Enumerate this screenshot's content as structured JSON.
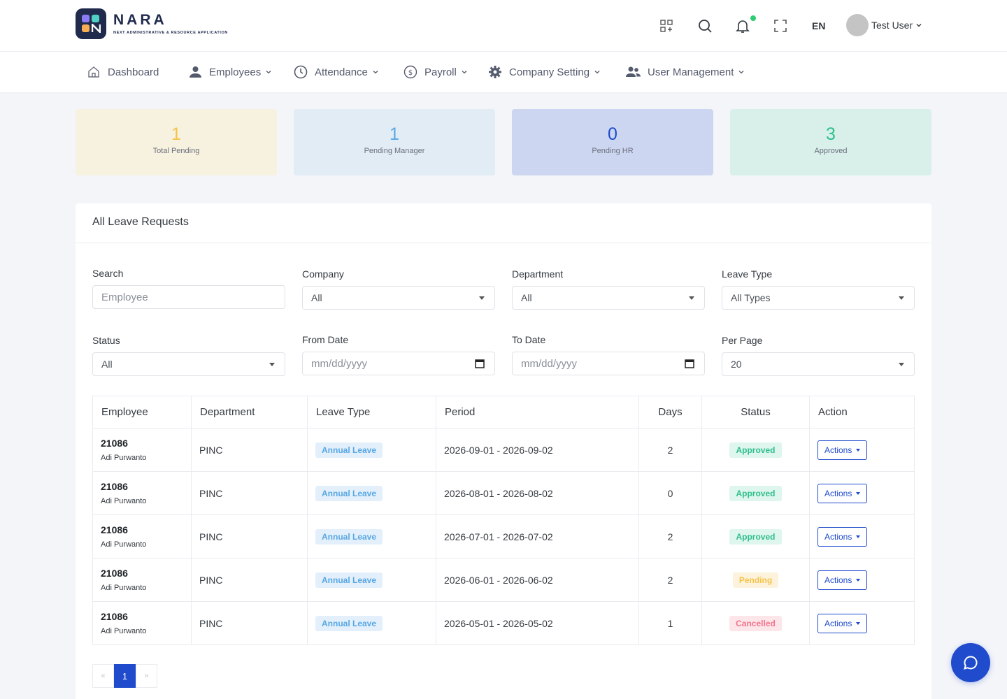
{
  "brand": {
    "name": "NARA",
    "tagline": "NEXT ADMINISTRATIVE & RESOURCE APPLICATION"
  },
  "header": {
    "language": "EN",
    "user_name": "Test User"
  },
  "nav": [
    {
      "label": "Dashboard",
      "icon": "home-icon"
    },
    {
      "label": "Employees",
      "icon": "user-icon"
    },
    {
      "label": "Attendance",
      "icon": "clock-icon"
    },
    {
      "label": "Payroll",
      "icon": "dollar-icon"
    },
    {
      "label": "Company Setting",
      "icon": "gear-icon"
    },
    {
      "label": "User Management",
      "icon": "users-icon"
    }
  ],
  "stats": [
    {
      "value": "1",
      "label": "Total Pending",
      "color": "#f4c34a",
      "bg": "#f7f1df"
    },
    {
      "value": "1",
      "label": "Pending Manager",
      "color": "#59a7e4",
      "bg": "#e1ecf5"
    },
    {
      "value": "0",
      "label": "Pending HR",
      "color": "#1f4bcc",
      "bg": "#ccd6f0"
    },
    {
      "value": "3",
      "label": "Approved",
      "color": "#2fbf8b",
      "bg": "#d9f0ea"
    }
  ],
  "card_title": "All Leave Requests",
  "filters": {
    "search_label": "Search",
    "search_placeholder": "Employee",
    "company_label": "Company",
    "company_value": "All",
    "department_label": "Department",
    "department_value": "All",
    "leave_type_label": "Leave Type",
    "leave_type_value": "All Types",
    "status_label": "Status",
    "status_value": "All",
    "from_label": "From Date",
    "from_placeholder": "mm/dd/yyyy",
    "to_label": "To Date",
    "to_placeholder": "mm/dd/yyyy",
    "per_page_label": "Per Page",
    "per_page_value": "20"
  },
  "table": {
    "headers": [
      "Employee",
      "Department",
      "Leave Type",
      "Period",
      "Days",
      "Status",
      "Action"
    ],
    "rows": [
      {
        "id": "21086",
        "name": "Adi Purwanto",
        "dept": "PINC",
        "type": "Annual Leave",
        "period": "2026-09-01 - 2026-09-02",
        "days": "2",
        "status": "Approved",
        "status_class": "approved",
        "action": "Actions"
      },
      {
        "id": "21086",
        "name": "Adi Purwanto",
        "dept": "PINC",
        "type": "Annual Leave",
        "period": "2026-08-01 - 2026-08-02",
        "days": "0",
        "status": "Approved",
        "status_class": "approved",
        "action": "Actions"
      },
      {
        "id": "21086",
        "name": "Adi Purwanto",
        "dept": "PINC",
        "type": "Annual Leave",
        "period": "2026-07-01 - 2026-07-02",
        "days": "2",
        "status": "Approved",
        "status_class": "approved",
        "action": "Actions"
      },
      {
        "id": "21086",
        "name": "Adi Purwanto",
        "dept": "PINC",
        "type": "Annual Leave",
        "period": "2026-06-01 - 2026-06-02",
        "days": "2",
        "status": "Pending",
        "status_class": "pending",
        "action": "Actions"
      },
      {
        "id": "21086",
        "name": "Adi Purwanto",
        "dept": "PINC",
        "type": "Annual Leave",
        "period": "2026-05-01 - 2026-05-02",
        "days": "1",
        "status": "Cancelled",
        "status_class": "cancelled",
        "action": "Actions"
      }
    ]
  },
  "pagination": {
    "prev": "«",
    "current": "1",
    "next": "»"
  }
}
